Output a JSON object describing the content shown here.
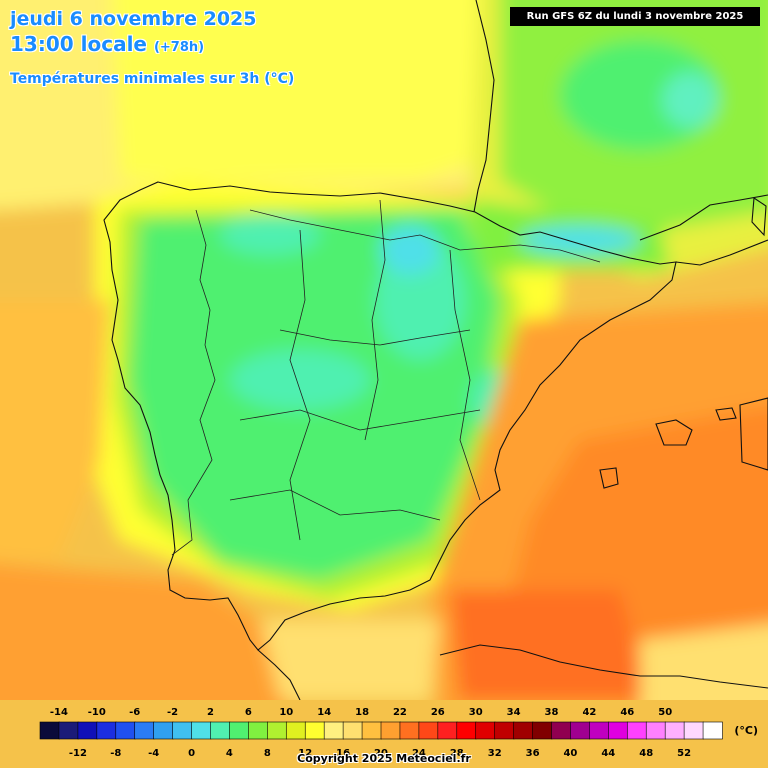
{
  "header": {
    "date_line": "jeudi 6 novembre 2025",
    "time_line": "13:00 locale",
    "lead_time": "(+78h)",
    "variable": "Températures minimales sur 3h (°C)",
    "run_info": "Run GFS 6Z du lundi 3 novembre 2025"
  },
  "legend": {
    "unit": "(°C)",
    "top_labels": [
      "-14",
      "-10",
      "-6",
      "-2",
      "2",
      "6",
      "10",
      "14",
      "18",
      "22",
      "26",
      "30",
      "34",
      "38",
      "42",
      "46",
      "50"
    ],
    "bottom_labels": [
      "-12",
      "-8",
      "-4",
      "0",
      "4",
      "8",
      "12",
      "16",
      "20",
      "24",
      "28",
      "32",
      "36",
      "40",
      "44",
      "48",
      "52"
    ],
    "colors": [
      "#0a0a3a",
      "#1b1b78",
      "#1010b8",
      "#1c2ee0",
      "#2050f0",
      "#2a7cf5",
      "#30a0f0",
      "#40c0f0",
      "#50e0e8",
      "#50f0b0",
      "#50f070",
      "#80f040",
      "#b0f030",
      "#e0f020",
      "#ffff30",
      "#fff080",
      "#ffe070",
      "#ffc040",
      "#ffa030",
      "#ff7020",
      "#ff4818",
      "#ff2020",
      "#ff0000",
      "#e00000",
      "#c00000",
      "#a00000",
      "#800000",
      "#900050",
      "#a00090",
      "#c000c0",
      "#e000e0",
      "#ff40ff",
      "#ff80ff",
      "#ffb0ff",
      "#ffd8ff",
      "#ffffff"
    ]
  },
  "copyright": "Copyright 2025 Meteociel.fr"
}
